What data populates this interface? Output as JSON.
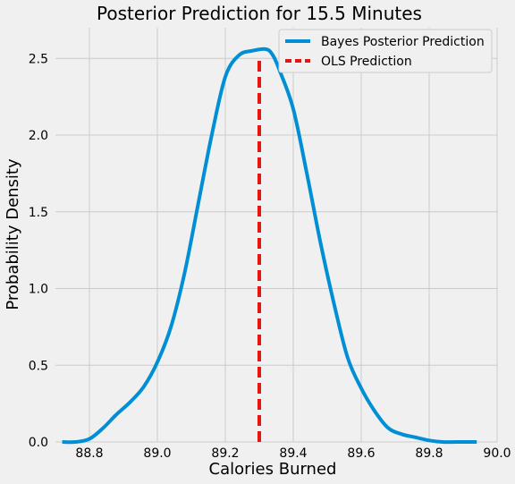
{
  "chart_data": {
    "type": "line",
    "title": "Posterior Prediction for 15.5 Minutes",
    "xlabel": "Calories Burned",
    "ylabel": "Probability Density",
    "xlim": [
      88.7,
      90.0
    ],
    "ylim": [
      0.0,
      2.7
    ],
    "xticks": [
      88.8,
      89.0,
      89.2,
      89.4,
      89.6,
      89.8,
      90.0
    ],
    "xtick_labels": [
      "88.8",
      "89.0",
      "89.2",
      "89.4",
      "89.6",
      "89.8",
      "90.0"
    ],
    "yticks": [
      0.0,
      0.5,
      1.0,
      1.5,
      2.0,
      2.5
    ],
    "ytick_labels": [
      "0.0",
      "0.5",
      "1.0",
      "1.5",
      "2.0",
      "2.5"
    ],
    "grid": true,
    "legend_position": "top-right",
    "series": [
      {
        "name": "Bayes Posterior Prediction",
        "style": "solid",
        "color": "#008fd5",
        "x": [
          88.72,
          88.76,
          88.8,
          88.84,
          88.88,
          88.92,
          88.96,
          89.0,
          89.04,
          89.08,
          89.12,
          89.16,
          89.2,
          89.24,
          89.28,
          89.32,
          89.34,
          89.36,
          89.4,
          89.44,
          89.48,
          89.52,
          89.56,
          89.6,
          89.64,
          89.68,
          89.72,
          89.76,
          89.8,
          89.84,
          89.88,
          89.92,
          89.94
        ],
        "y": [
          0.0,
          0.0,
          0.02,
          0.09,
          0.18,
          0.26,
          0.36,
          0.52,
          0.75,
          1.1,
          1.55,
          2.0,
          2.38,
          2.52,
          2.55,
          2.56,
          2.52,
          2.42,
          2.17,
          1.75,
          1.3,
          0.9,
          0.55,
          0.35,
          0.2,
          0.09,
          0.05,
          0.03,
          0.01,
          0.0,
          0.0,
          0.0,
          0.0
        ]
      },
      {
        "name": "OLS Prediction",
        "style": "dashed",
        "color": "#e5160e",
        "x": [
          89.3,
          89.3
        ],
        "y": [
          0.0,
          2.5
        ]
      }
    ]
  }
}
